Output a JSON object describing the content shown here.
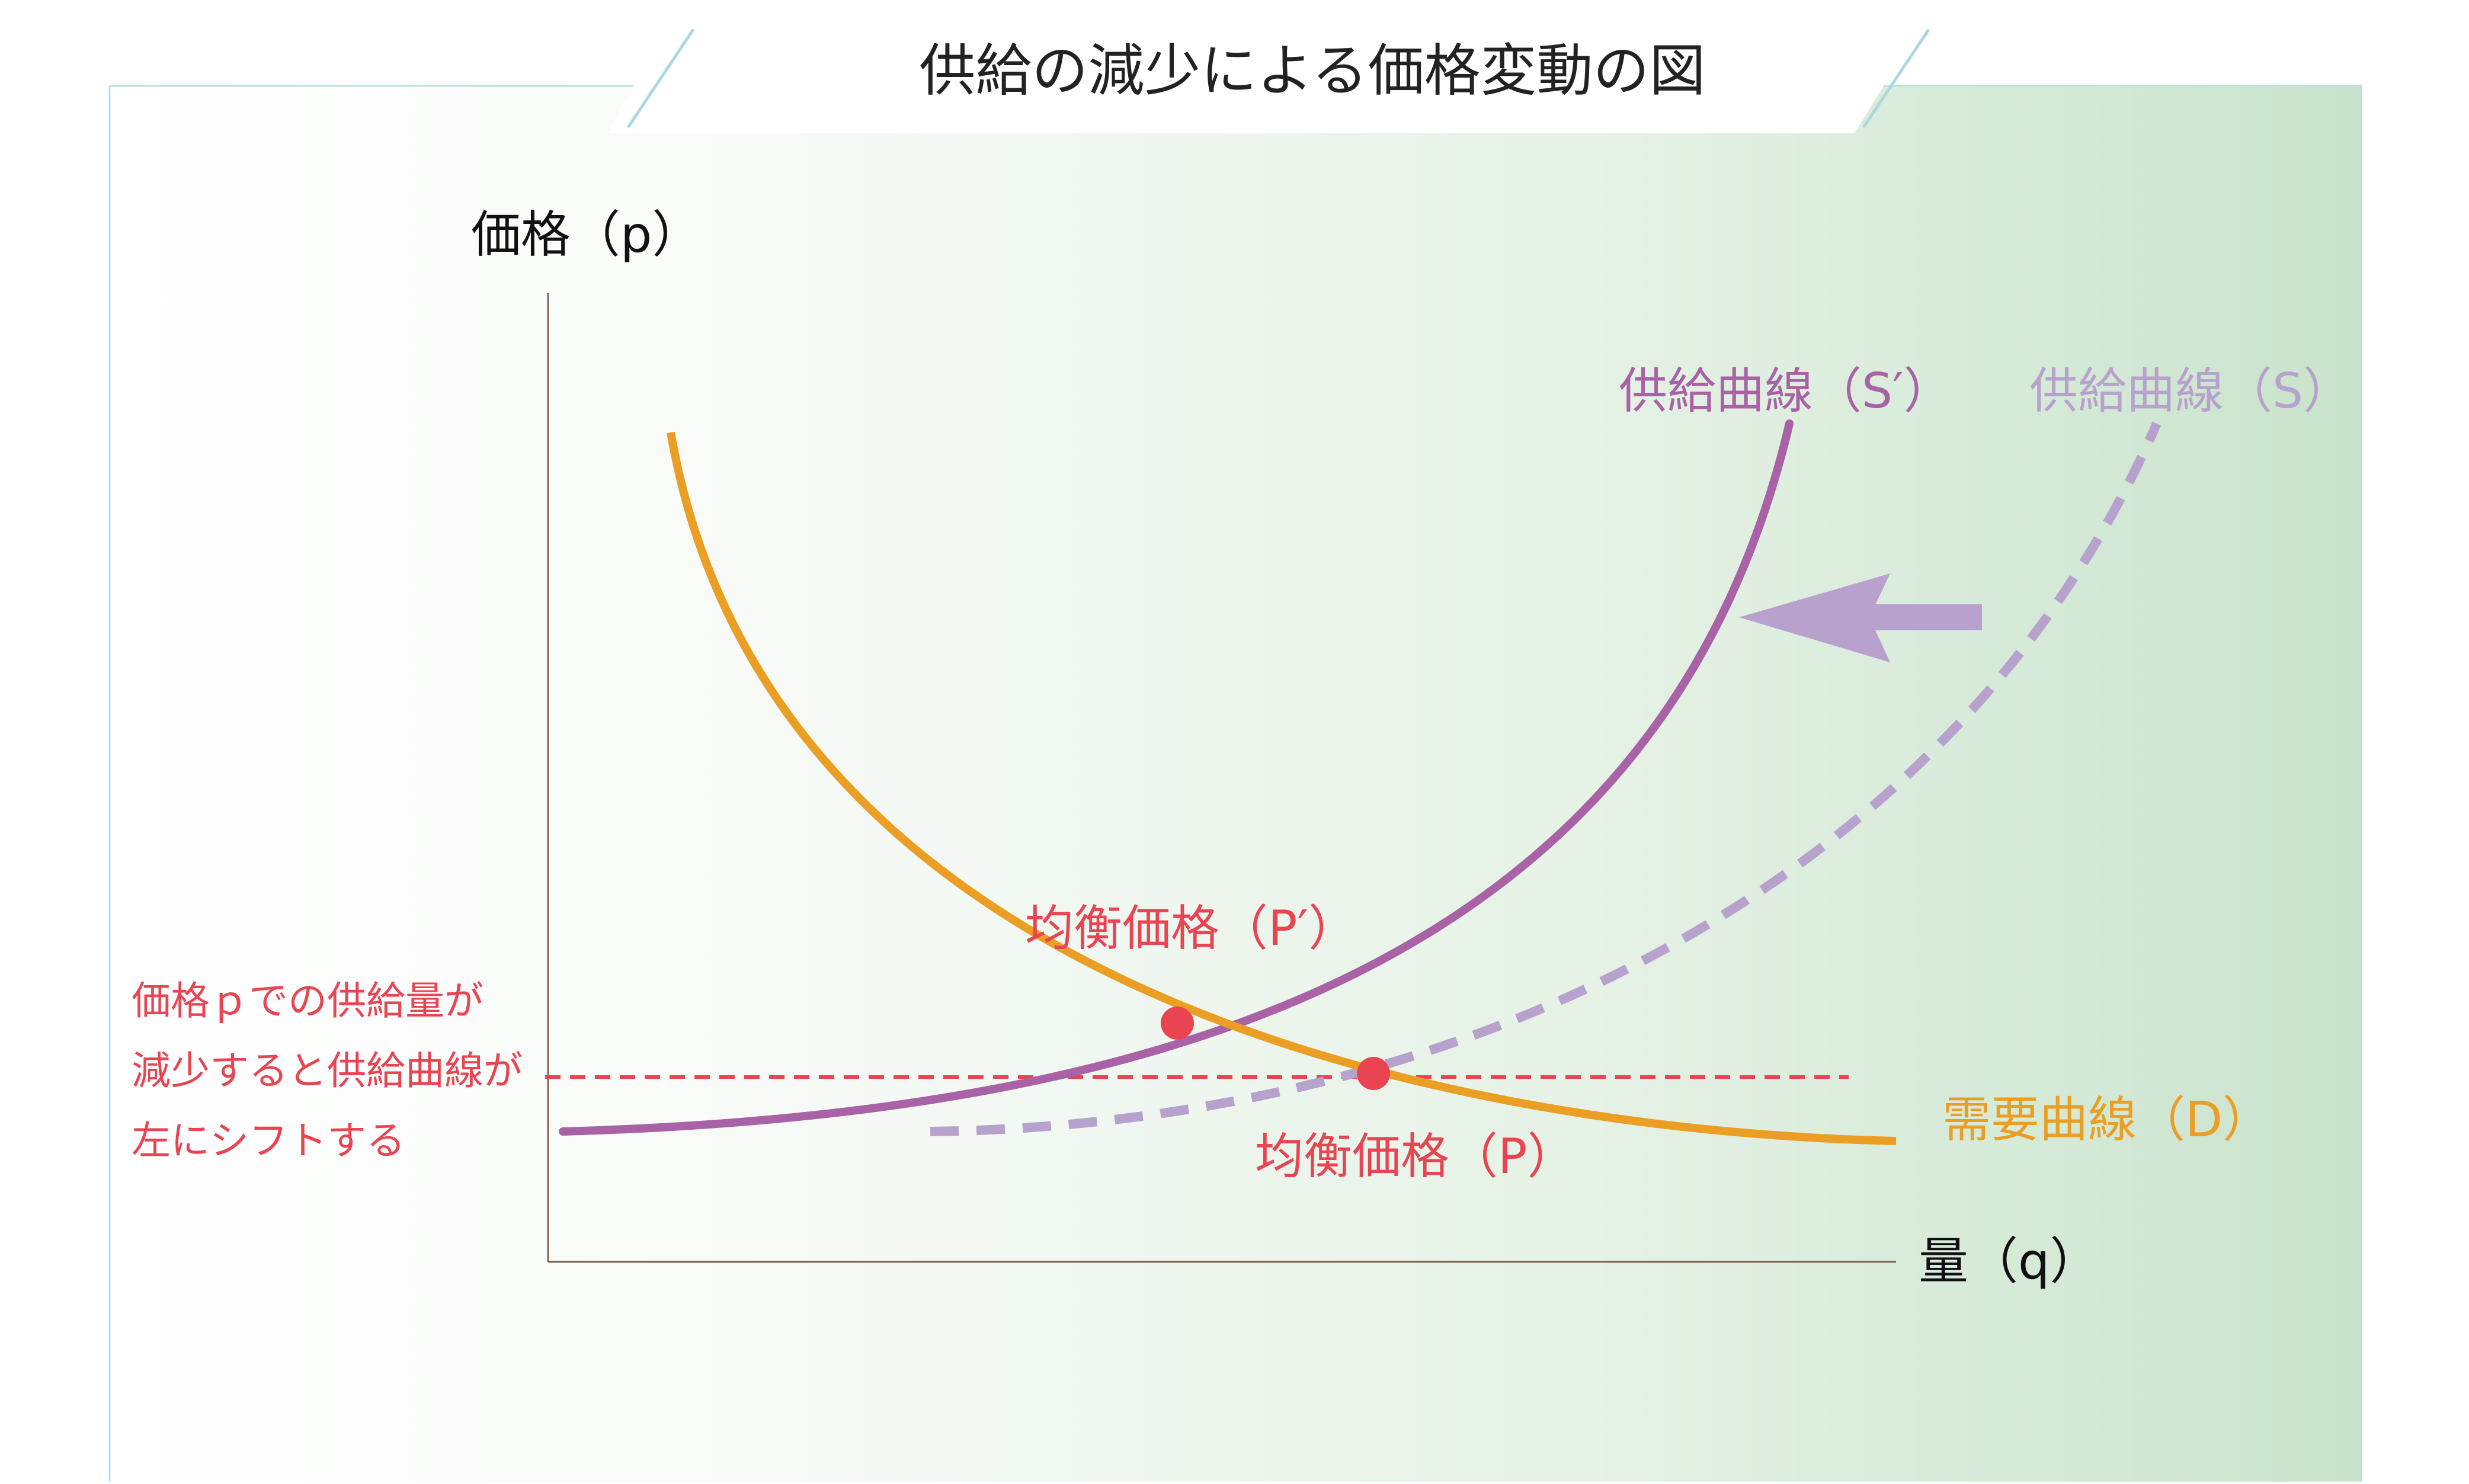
{
  "title": "供給の減少による価格変動の図",
  "axes": {
    "y_label": "価格（p）",
    "x_label": "量（q）"
  },
  "curves": {
    "supply_new_label": "供給曲線（S′）",
    "supply_old_label": "供給曲線（S）",
    "demand_label": "需要曲線（D）"
  },
  "points": {
    "equilibrium_new_label": "均衡価格（P′）",
    "equilibrium_old_label": "均衡価格（P）"
  },
  "note": {
    "lines": [
      "価格ｐでの供給量が",
      "減少すると供給曲線が",
      "左にシフトする"
    ]
  },
  "colors": {
    "supply_new": "#a862a5",
    "supply_old": "#b7a2cd",
    "demand": "#eb9e24",
    "equilibrium": "#ea4352",
    "note": "#e84452",
    "axis": "#7a6450",
    "frame": "#b9dfe0",
    "gradient_start": "#ffffff",
    "gradient_end": "#c9e3cc",
    "arrow": "#b9a1cd"
  }
}
